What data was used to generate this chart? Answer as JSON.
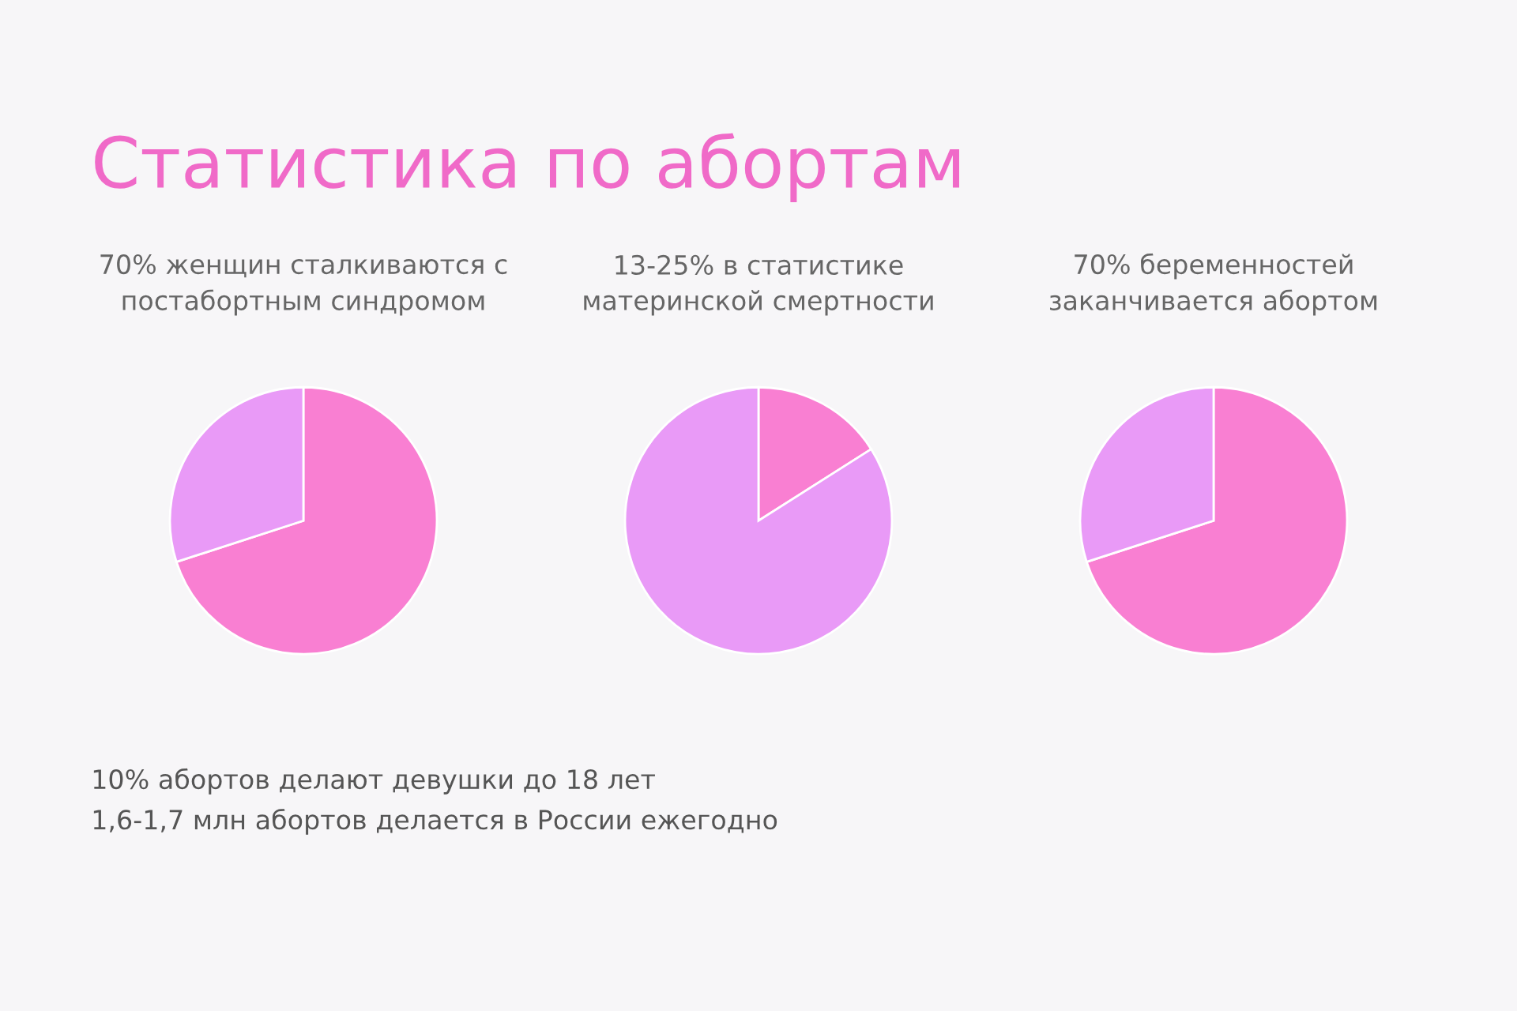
{
  "chart_data": [
    {
      "type": "other",
      "title": "Статистика по абортам",
      "annotations": [
        "10% абортов делают девушки до 18 лет",
        "1,6-1,7 млн абортов делается в России ежегодно"
      ]
    },
    {
      "type": "pie",
      "title": "70% женщин сталкиваются с\nпостабортным синдромом",
      "categories": [
        null,
        null
      ],
      "values": [
        70,
        30
      ],
      "colors": [
        "#f97fd2",
        "#e99af7"
      ]
    },
    {
      "type": "pie",
      "title": "13-25% в статистике\nматеринской смертности",
      "categories": [
        null,
        null
      ],
      "values": [
        16,
        84
      ],
      "colors": [
        "#f97fd2",
        "#e99af7"
      ]
    },
    {
      "type": "pie",
      "title": "70% беременностей\nзаканчивается абортом",
      "categories": [
        null,
        null
      ],
      "values": [
        70,
        30
      ],
      "colors": [
        "#f97fd2",
        "#e99af7"
      ]
    }
  ]
}
